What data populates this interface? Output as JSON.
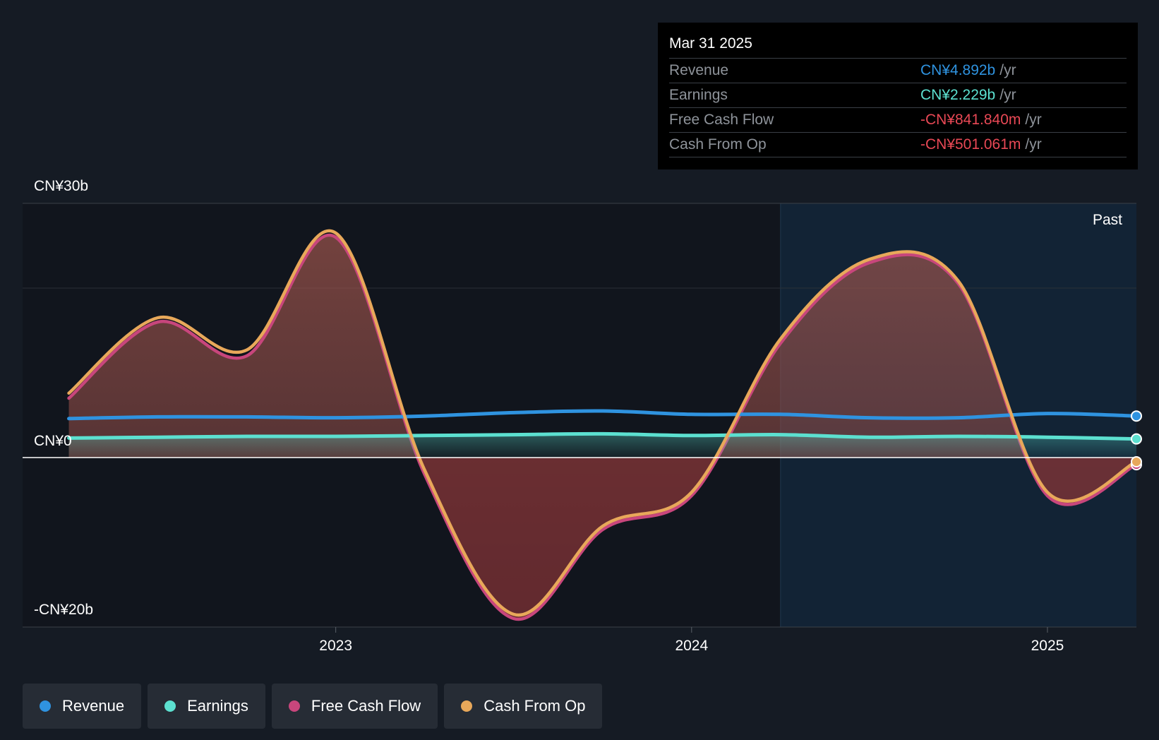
{
  "tooltip": {
    "date": "Mar 31 2025",
    "rows": [
      {
        "label": "Revenue",
        "value": "CN¥4.892b",
        "unit": "/yr",
        "color": "#2f93e0"
      },
      {
        "label": "Earnings",
        "value": "CN¥2.229b",
        "unit": "/yr",
        "color": "#5ce0d0"
      },
      {
        "label": "Free Cash Flow",
        "value": "-CN¥841.840m",
        "unit": "/yr",
        "color": "#e84855"
      },
      {
        "label": "Cash From Op",
        "value": "-CN¥501.061m",
        "unit": "/yr",
        "color": "#e84855"
      }
    ]
  },
  "y_labels": {
    "top": "CN¥30b",
    "zero": "CN¥0",
    "bottom": "-CN¥20b"
  },
  "past_label": "Past",
  "legend": [
    {
      "label": "Revenue",
      "color": "#2f93e0"
    },
    {
      "label": "Earnings",
      "color": "#5ce0d0"
    },
    {
      "label": "Free Cash Flow",
      "color": "#c8467c"
    },
    {
      "label": "Cash From Op",
      "color": "#e8a85a"
    }
  ],
  "chart_data": {
    "type": "area",
    "x_ticks": [
      "2023",
      "2024",
      "2025"
    ],
    "x_tick_values": [
      2023.0,
      2024.0,
      2025.0
    ],
    "xlim": [
      2022.12,
      2025.25
    ],
    "ylim": [
      -20,
      30
    ],
    "past_start": 2024.25,
    "grid": true,
    "series": [
      {
        "name": "Revenue",
        "color": "#2f93e0",
        "x": [
          2022.25,
          2022.5,
          2022.75,
          2023.0,
          2023.25,
          2023.5,
          2023.75,
          2024.0,
          2024.25,
          2024.5,
          2024.75,
          2025.0,
          2025.25
        ],
        "y": [
          4.6,
          4.8,
          4.8,
          4.7,
          4.9,
          5.3,
          5.5,
          5.1,
          5.1,
          4.7,
          4.7,
          5.2,
          4.9
        ]
      },
      {
        "name": "Earnings",
        "color": "#5ce0d0",
        "x": [
          2022.25,
          2022.5,
          2022.75,
          2023.0,
          2023.25,
          2023.5,
          2023.75,
          2024.0,
          2024.25,
          2024.5,
          2024.75,
          2025.0,
          2025.25
        ],
        "y": [
          2.3,
          2.4,
          2.5,
          2.5,
          2.6,
          2.7,
          2.8,
          2.6,
          2.7,
          2.4,
          2.5,
          2.4,
          2.2
        ]
      },
      {
        "name": "Free Cash Flow",
        "color": "#c8467c",
        "x": [
          2022.25,
          2022.5,
          2022.75,
          2023.0,
          2023.25,
          2023.5,
          2023.75,
          2024.0,
          2024.25,
          2024.5,
          2024.75,
          2025.0,
          2025.25
        ],
        "y": [
          7.0,
          16.0,
          12.0,
          26.0,
          -2.0,
          -19.0,
          -8.5,
          -4.5,
          13.5,
          23.0,
          20.5,
          -4.5,
          -0.84
        ]
      },
      {
        "name": "Cash From Op",
        "color": "#e8a85a",
        "x": [
          2022.25,
          2022.5,
          2022.75,
          2023.0,
          2023.25,
          2023.5,
          2023.75,
          2024.0,
          2024.25,
          2024.5,
          2024.75,
          2025.0,
          2025.25
        ],
        "y": [
          7.6,
          16.5,
          12.7,
          26.5,
          -1.5,
          -18.5,
          -8.1,
          -4.1,
          14.0,
          23.4,
          20.8,
          -4.1,
          -0.5
        ]
      }
    ]
  }
}
